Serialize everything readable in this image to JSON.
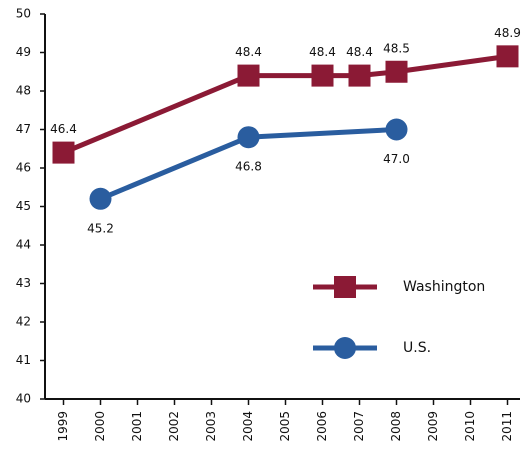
{
  "chart_data": {
    "type": "line",
    "xlim": [
      1998.5,
      2011.5
    ],
    "xticks": [
      1999,
      2000,
      2001,
      2002,
      2003,
      2004,
      2005,
      2006,
      2007,
      2008,
      2009,
      2010,
      2011
    ],
    "ylim": [
      40,
      50
    ],
    "yticks": [
      40,
      41,
      42,
      43,
      44,
      45,
      46,
      47,
      48,
      49,
      50
    ],
    "grid": false,
    "series": [
      {
        "name": "Washington",
        "color": "#8b1a35",
        "marker": "square",
        "label_side": "above",
        "x": [
          1999,
          2004,
          2006,
          2007,
          2008,
          2011
        ],
        "values": [
          46.4,
          48.4,
          48.4,
          48.4,
          48.5,
          48.9
        ],
        "value_labels": [
          "46.4",
          "48.4",
          "48.4",
          "48.4",
          "48.5",
          "48.9"
        ]
      },
      {
        "name": "U.S.",
        "color": "#2a5d9f",
        "marker": "circle",
        "label_side": "below",
        "x": [
          2000,
          2004,
          2008
        ],
        "values": [
          45.2,
          46.8,
          47.0
        ],
        "value_labels": [
          "45.2",
          "46.8",
          "47.0"
        ]
      }
    ]
  }
}
